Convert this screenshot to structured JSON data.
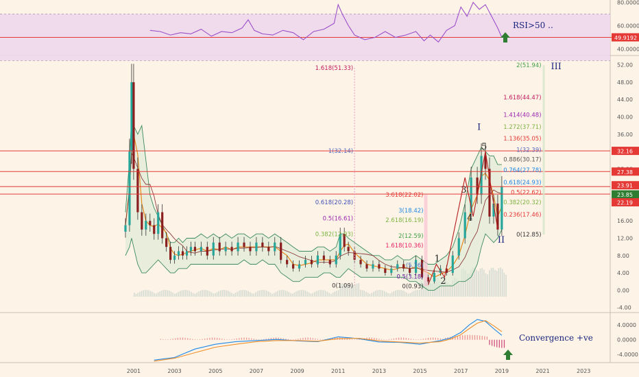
{
  "chart_data": [
    {
      "type": "line",
      "panel": "rsi",
      "annotation": "RSI>50 ..",
      "last_value_tag": "49.9192",
      "y_ticks": [
        "80.0000",
        "60.0000",
        "40.0000"
      ],
      "ylim": [
        35,
        82
      ],
      "levels": [
        70,
        50,
        30
      ],
      "x": [
        2001.8,
        2002.3,
        2002.8,
        2003.3,
        2003.8,
        2004.3,
        2004.8,
        2005.3,
        2005.8,
        2006.3,
        2006.6,
        2006.9,
        2007.3,
        2007.8,
        2008.3,
        2008.8,
        2009.3,
        2009.8,
        2010.3,
        2010.8,
        2011.0,
        2011.2,
        2011.5,
        2011.8,
        2012.3,
        2012.8,
        2013.3,
        2013.8,
        2014.3,
        2014.8,
        2015.2,
        2015.5,
        2015.9,
        2016.3,
        2016.7,
        2017.0,
        2017.3,
        2017.6,
        2017.9,
        2018.2,
        2018.5,
        2018.8,
        2019.0
      ],
      "values": [
        56,
        55,
        52,
        54,
        53,
        57,
        51,
        55,
        54,
        58,
        65,
        56,
        53,
        52,
        56,
        54,
        48,
        55,
        57,
        62,
        78,
        70,
        60,
        52,
        48,
        50,
        55,
        50,
        52,
        55,
        47,
        52,
        46,
        56,
        60,
        76,
        68,
        80,
        74,
        78,
        68,
        58,
        50
      ]
    },
    {
      "type": "candlestick",
      "panel": "price",
      "x_ticks": [
        "2001",
        "2003",
        "2005",
        "2007",
        "2009",
        "2011",
        "2013",
        "2015",
        "2017",
        "2019",
        "2021",
        "2023"
      ],
      "y_ticks": [
        "52.00",
        "48.00",
        "44.00",
        "40.00",
        "36.00",
        "32.00",
        "28.00",
        "24.00",
        "20.00",
        "16.00",
        "12.00",
        "8.00",
        "4.00",
        "0.00",
        "-4.00"
      ],
      "ylim": [
        -5,
        54
      ],
      "x": [
        2000.6,
        2000.8,
        2000.9,
        2001.0,
        2001.2,
        2001.4,
        2001.6,
        2001.8,
        2002.0,
        2002.2,
        2002.4,
        2002.6,
        2002.8,
        2003.0,
        2003.2,
        2003.4,
        2003.6,
        2003.8,
        2004.0,
        2004.3,
        2004.6,
        2004.9,
        2005.2,
        2005.5,
        2005.8,
        2006.1,
        2006.4,
        2006.7,
        2007.0,
        2007.3,
        2007.6,
        2007.9,
        2008.2,
        2008.5,
        2008.8,
        2009.1,
        2009.4,
        2009.7,
        2010.0,
        2010.3,
        2010.6,
        2010.9,
        2011.1,
        2011.3,
        2011.5,
        2011.8,
        2012.1,
        2012.4,
        2012.7,
        2013.0,
        2013.3,
        2013.6,
        2013.9,
        2014.2,
        2014.5,
        2014.8,
        2015.1,
        2015.4,
        2015.7,
        2016.0,
        2016.3,
        2016.6,
        2016.9,
        2017.2,
        2017.5,
        2017.8,
        2018.0,
        2018.2,
        2018.4,
        2018.6,
        2018.8,
        2019.0
      ],
      "close": [
        15,
        32,
        48,
        28,
        18,
        14,
        16,
        15,
        13,
        18,
        12,
        10,
        7,
        8,
        9,
        8,
        9,
        10,
        9,
        10,
        8,
        11,
        9,
        10,
        9,
        11,
        10,
        9,
        11,
        10,
        9,
        11,
        7,
        6,
        5,
        6,
        7,
        6,
        8,
        7,
        6,
        8,
        13,
        10,
        9,
        7,
        6,
        5,
        6,
        5,
        4,
        5,
        6,
        5,
        4,
        7,
        3,
        2,
        4,
        5,
        4,
        8,
        12,
        18,
        26,
        22,
        31,
        28,
        17,
        20,
        14,
        24
      ],
      "bollinger": {
        "upper": [
          18,
          30,
          40,
          38,
          36,
          38,
          30,
          22,
          19,
          17,
          15,
          13,
          11,
          11,
          12,
          11,
          12,
          12,
          12,
          13,
          12,
          13,
          12,
          13,
          12,
          13,
          13,
          12,
          13,
          13,
          12,
          13,
          12,
          11,
          10,
          9,
          9,
          9,
          10,
          10,
          9,
          10,
          13,
          13,
          12,
          11,
          10,
          9,
          8,
          8,
          7,
          7,
          8,
          7,
          7,
          8,
          7,
          6,
          6,
          7,
          8,
          10,
          14,
          20,
          28,
          31,
          33,
          32,
          31,
          31,
          29,
          29
        ],
        "lower": [
          8,
          10,
          12,
          10,
          6,
          4,
          4,
          5,
          6,
          7,
          6,
          5,
          4,
          4,
          5,
          5,
          5,
          6,
          6,
          6,
          6,
          6,
          6,
          6,
          6,
          6,
          7,
          6,
          6,
          7,
          6,
          6,
          4,
          3,
          2,
          2,
          3,
          3,
          3,
          4,
          4,
          3,
          3,
          4,
          5,
          4,
          3,
          3,
          3,
          3,
          3,
          3,
          3,
          3,
          2,
          2,
          1,
          0,
          0,
          1,
          1,
          1,
          2,
          2,
          3,
          6,
          10,
          13,
          12,
          11,
          12,
          14
        ]
      },
      "fib_left": {
        "ext": [
          "1.618(51.33)",
          "1(32.14)",
          "0.618(20.28)",
          "0.5(16.61)",
          "0.382(12.93)",
          "0(1.09)"
        ],
        "retr": [
          "3.618(22.02)",
          "3(18.42)",
          "2.618(16.19)",
          "2(12.59)",
          "1.618(10.36)",
          "(5.76)",
          "0.5(3.18)",
          "0(0.93)"
        ]
      },
      "fib_right": {
        "ext": [
          "2(51.94)",
          "1.618(44.47)",
          "1.414(40.48)",
          "1.272(37.71)",
          "1.136(35.05)",
          "1(32.39)",
          "0.886(30.17)",
          "0.764(27.78)",
          "0.618(24.93)",
          "0.5(22.62)",
          "0.382(20.32)",
          "0.236(17.46)",
          "0(12.85)"
        ]
      },
      "waves": [
        "1",
        "2",
        "3",
        "4",
        "5"
      ],
      "wave_degree": [
        "I",
        "II",
        "III"
      ],
      "price_tags": [
        "32.16",
        "27.38",
        "23.91",
        "23.85",
        "22.19"
      ]
    },
    {
      "type": "line",
      "panel": "macd",
      "annotation": "Convergence +ve",
      "y_ticks": [
        "4.0000",
        "0.0000",
        "-4.0000"
      ],
      "ylim": [
        -6,
        7
      ],
      "x": [
        2002.0,
        2003.0,
        2004.0,
        2005.0,
        2006.0,
        2007.0,
        2008.0,
        2009.0,
        2010.0,
        2011.0,
        2012.0,
        2013.0,
        2014.0,
        2015.0,
        2016.0,
        2016.5,
        2017.0,
        2017.4,
        2017.8,
        2018.2,
        2018.6,
        2019.0
      ],
      "macd": [
        -5.5,
        -4.8,
        -2.5,
        -1.2,
        -0.5,
        -0.2,
        0.1,
        -0.3,
        -0.5,
        0.8,
        0.3,
        -0.6,
        -0.7,
        -1.2,
        -0.2,
        0.5,
        2.0,
        4.0,
        5.5,
        5.0,
        3.0,
        1.2
      ],
      "signal": [
        -5.8,
        -5.0,
        -3.5,
        -2.0,
        -1.2,
        -0.5,
        -0.2,
        -0.2,
        -0.4,
        0.3,
        0.4,
        -0.3,
        -0.6,
        -0.9,
        -0.5,
        0.2,
        1.4,
        3.0,
        4.5,
        5.2,
        3.8,
        2.2
      ]
    }
  ]
}
